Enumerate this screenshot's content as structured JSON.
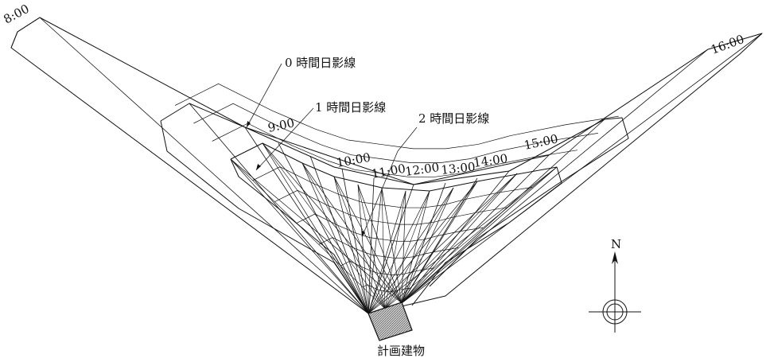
{
  "diagram": {
    "times": [
      "8:00",
      "9:00",
      "10:00",
      "11:00",
      "12:00",
      "13:00",
      "14:00",
      "15:00",
      "16:00"
    ],
    "labels": {
      "zero_hour": "0 時間日影線",
      "one_hour": "1 時間日影線",
      "two_hour": "2 時間日影線",
      "building": "計画建物",
      "north": "N"
    },
    "colors": {
      "ink": "#111111",
      "hatch": "#555555"
    }
  }
}
